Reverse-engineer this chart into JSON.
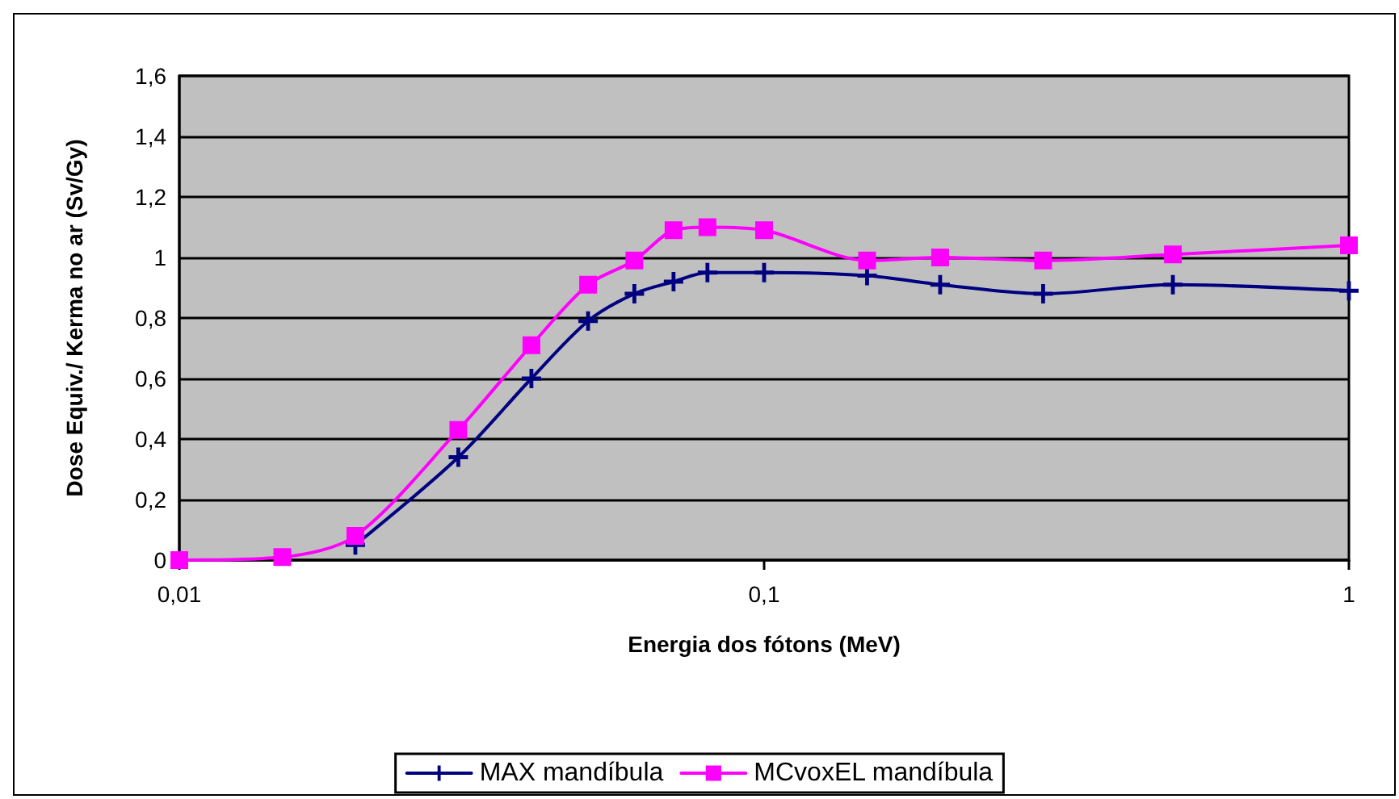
{
  "chart_data": {
    "type": "line",
    "xlabel": "Energia dos fótons (MeV)",
    "ylabel": "Dose Equiv./ Kerma no ar (Sv/Gy)",
    "x": [
      0.01,
      0.015,
      0.02,
      0.03,
      0.04,
      0.05,
      0.06,
      0.07,
      0.08,
      0.1,
      0.15,
      0.2,
      0.3,
      0.5,
      1
    ],
    "series": [
      {
        "name": "MAX mandíbula",
        "color": "#000080",
        "marker": "cross",
        "values": [
          null,
          null,
          0.05,
          0.34,
          0.6,
          0.79,
          0.88,
          0.92,
          0.95,
          0.95,
          0.94,
          0.91,
          0.88,
          0.91,
          0.89
        ]
      },
      {
        "name": "MCvoxEL mandíbula",
        "color": "#ff00ff",
        "marker": "square",
        "values": [
          0,
          0.01,
          0.08,
          0.43,
          0.71,
          0.91,
          0.99,
          1.09,
          1.1,
          1.09,
          0.99,
          1.0,
          0.99,
          1.01,
          1.04
        ]
      }
    ],
    "log": "x",
    "xlim": [
      0.01,
      1
    ],
    "xticks": [
      {
        "value": 0.01,
        "label": "0,01"
      },
      {
        "value": 0.1,
        "label": "0,1"
      },
      1
    ],
    "ylim": [
      0,
      1.6
    ],
    "yticks": [
      0,
      {
        "value": 0.2,
        "label": "0,2"
      },
      {
        "value": 0.4,
        "label": "0,4"
      },
      {
        "value": 0.6,
        "label": "0,6"
      },
      {
        "value": 0.8,
        "label": "0,8"
      },
      1,
      {
        "value": 1.2,
        "label": "1,2"
      },
      {
        "value": 1.4,
        "label": "1,4"
      },
      {
        "value": 1.6,
        "label": "1,6"
      }
    ],
    "grid": "y",
    "legend": "bottom",
    "line_style": "solid"
  }
}
